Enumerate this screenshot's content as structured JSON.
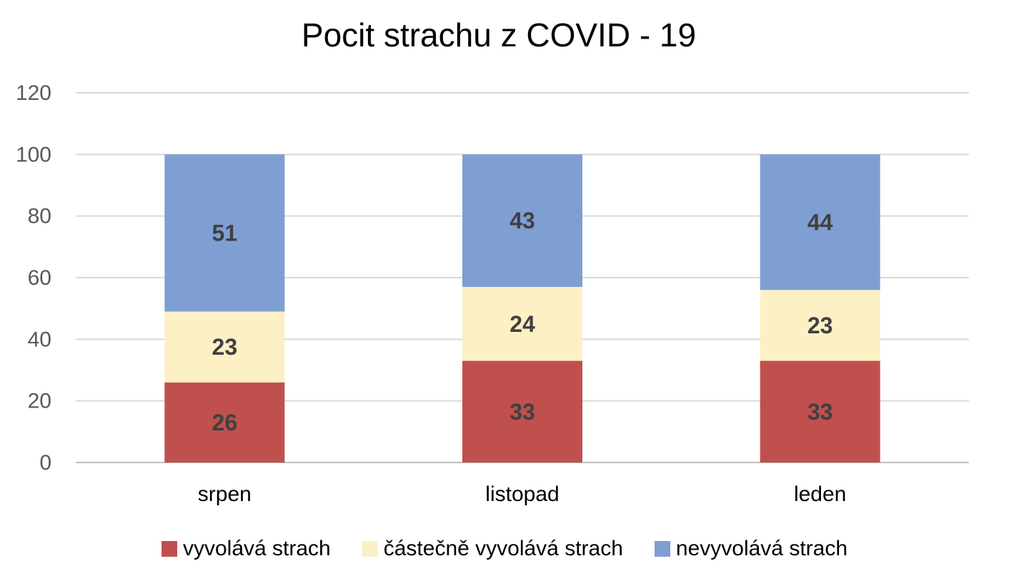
{
  "chart_data": {
    "type": "bar",
    "stacked": true,
    "title": "Pocit strachu z COVID - 19",
    "xlabel": "",
    "ylabel": "",
    "ylim": [
      0,
      120
    ],
    "yticks": [
      0,
      20,
      40,
      60,
      80,
      100,
      120
    ],
    "grid": true,
    "legend_position": "bottom",
    "categories": [
      "srpen",
      "listopad",
      "leden"
    ],
    "series": [
      {
        "name": "vyvolává strach",
        "values": [
          26,
          33,
          33
        ],
        "color": "#c0504d"
      },
      {
        "name": "částečně vyvolává strach",
        "values": [
          23,
          24,
          23
        ],
        "color": "#fdf0c4"
      },
      {
        "name": "nevyvolává strach",
        "values": [
          51,
          43,
          44
        ],
        "color": "#7f9fd3"
      }
    ]
  }
}
